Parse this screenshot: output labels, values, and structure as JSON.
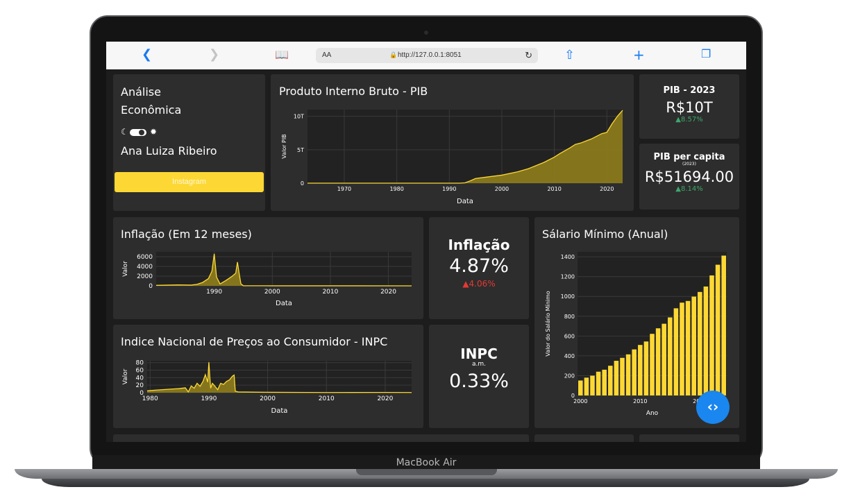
{
  "device": {
    "label": "MacBook Air"
  },
  "browser": {
    "text_size_label": "AA",
    "url": "http://127.0.0.1:8051"
  },
  "sidebar": {
    "title_line1": "Análise",
    "title_line2": "Econômica",
    "theme_toggle": {
      "left_icon": "moon-icon",
      "right_icon": "sun-icon",
      "state": "dark"
    },
    "author": "Ana Luiza Ribeiro",
    "instagram_button": "Instagram"
  },
  "colors": {
    "accent": "#fdd835",
    "card": "#2d2d2d",
    "positive": "#3fa66a",
    "negative": "#e53935",
    "fab": "#1a86ef"
  },
  "kpis": {
    "pib": {
      "title": "PIB - 2023",
      "value": "R$10T",
      "delta": "▲8.57%",
      "trend": "up"
    },
    "pib_per_capita": {
      "title": "PIB per capita",
      "subtitle": "(2023)",
      "value": "R$51694.00",
      "delta": "▲8.14%",
      "trend": "up"
    },
    "inflacao": {
      "title": "Inflação",
      "value": "4.87%",
      "delta": "▲4.06%",
      "trend": "up-negative"
    },
    "inpc": {
      "title": "INPC",
      "subtitle": "a.m.",
      "value": "0.33%"
    }
  },
  "chart_data": [
    {
      "id": "pib",
      "type": "area",
      "title": "Produto Interno Bruto - PIB",
      "xlabel": "Data",
      "ylabel": "Valor PIB",
      "yticks": [
        "0",
        "5T",
        "10T"
      ],
      "xticks": [
        "1970",
        "1980",
        "1990",
        "2000",
        "2010",
        "2020"
      ],
      "xlim": [
        1963,
        2023
      ],
      "ylim": [
        0,
        11
      ],
      "x": [
        1963,
        1980,
        1992,
        1993,
        1994,
        1995,
        1997,
        2000,
        2003,
        2005,
        2008,
        2010,
        2011,
        2013,
        2014,
        2015,
        2016,
        2017,
        2018,
        2019,
        2020,
        2021,
        2022,
        2023
      ],
      "values": [
        0,
        0,
        0,
        0.05,
        0.35,
        0.7,
        0.9,
        1.2,
        1.7,
        2.15,
        3.1,
        3.9,
        4.4,
        5.3,
        5.8,
        6.0,
        6.3,
        6.6,
        7.0,
        7.4,
        7.6,
        8.9,
        10.0,
        10.9
      ],
      "unit_note": "trillions R$"
    },
    {
      "id": "inflacao",
      "type": "area",
      "title": "Inflação (Em 12 meses)",
      "xlabel": "Data",
      "ylabel": "Valor",
      "yticks": [
        "0",
        "2000",
        "4000",
        "6000"
      ],
      "xticks": [
        "1990",
        "2000",
        "2010",
        "2020"
      ],
      "xlim": [
        1980,
        2024
      ],
      "ylim": [
        0,
        7000
      ],
      "x": [
        1980,
        1984,
        1986,
        1987,
        1988,
        1989,
        1989.6,
        1990,
        1990.4,
        1991,
        1992,
        1993,
        1993.7,
        1994,
        1994.3,
        1994.6,
        1995,
        2000,
        2024
      ],
      "values": [
        100,
        200,
        150,
        300,
        700,
        1500,
        3000,
        6600,
        1800,
        400,
        1100,
        1900,
        2600,
        4900,
        2500,
        400,
        30,
        10,
        5
      ]
    },
    {
      "id": "inpc",
      "type": "area",
      "title": "Indice Nacional de Preços ao Consumidor - INPC",
      "xlabel": "Data",
      "ylabel": "Valor",
      "yticks": [
        "0",
        "20",
        "40",
        "60",
        "80"
      ],
      "xticks": [
        "1980",
        "1990",
        "2000",
        "2010",
        "2020"
      ],
      "xlim": [
        1979.5,
        2024.5
      ],
      "ylim": [
        0,
        85
      ],
      "x": [
        1979.5,
        1981,
        1983,
        1985,
        1986,
        1986.5,
        1987,
        1987.5,
        1988,
        1988.5,
        1989,
        1989.4,
        1989.8,
        1990,
        1990.3,
        1990.6,
        1991,
        1991.5,
        1992,
        1992.5,
        1993,
        1993.5,
        1994,
        1994.3,
        1994.5,
        1995,
        2000,
        2010,
        2020,
        2024.5
      ],
      "values": [
        5,
        7,
        9,
        11,
        13,
        2,
        18,
        12,
        25,
        17,
        30,
        48,
        28,
        81,
        12,
        25,
        18,
        8,
        25,
        22,
        30,
        34,
        44,
        47,
        4,
        2,
        1,
        0.5,
        0.7,
        0.4
      ]
    },
    {
      "id": "salario_minimo",
      "type": "bar",
      "title": "Sálario Mínimo (Anual)",
      "xlabel": "Ano",
      "ylabel": "Valor do Salário Mínimo",
      "yticks": [
        "0",
        "200",
        "400",
        "600",
        "800",
        "1000",
        "1200",
        "1400"
      ],
      "xticks": [
        "2000",
        "2010",
        "2020"
      ],
      "ylim": [
        0,
        1450
      ],
      "categories": [
        "2000",
        "2001",
        "2002",
        "2003",
        "2004",
        "2005",
        "2006",
        "2007",
        "2008",
        "2009",
        "2010",
        "2011",
        "2012",
        "2013",
        "2014",
        "2015",
        "2016",
        "2017",
        "2018",
        "2019",
        "2020",
        "2021",
        "2022",
        "2023",
        "2024"
      ],
      "values": [
        151,
        180,
        200,
        240,
        260,
        300,
        350,
        380,
        415,
        465,
        510,
        545,
        622,
        678,
        724,
        788,
        880,
        937,
        954,
        998,
        1045,
        1100,
        1212,
        1320,
        1412
      ]
    }
  ]
}
